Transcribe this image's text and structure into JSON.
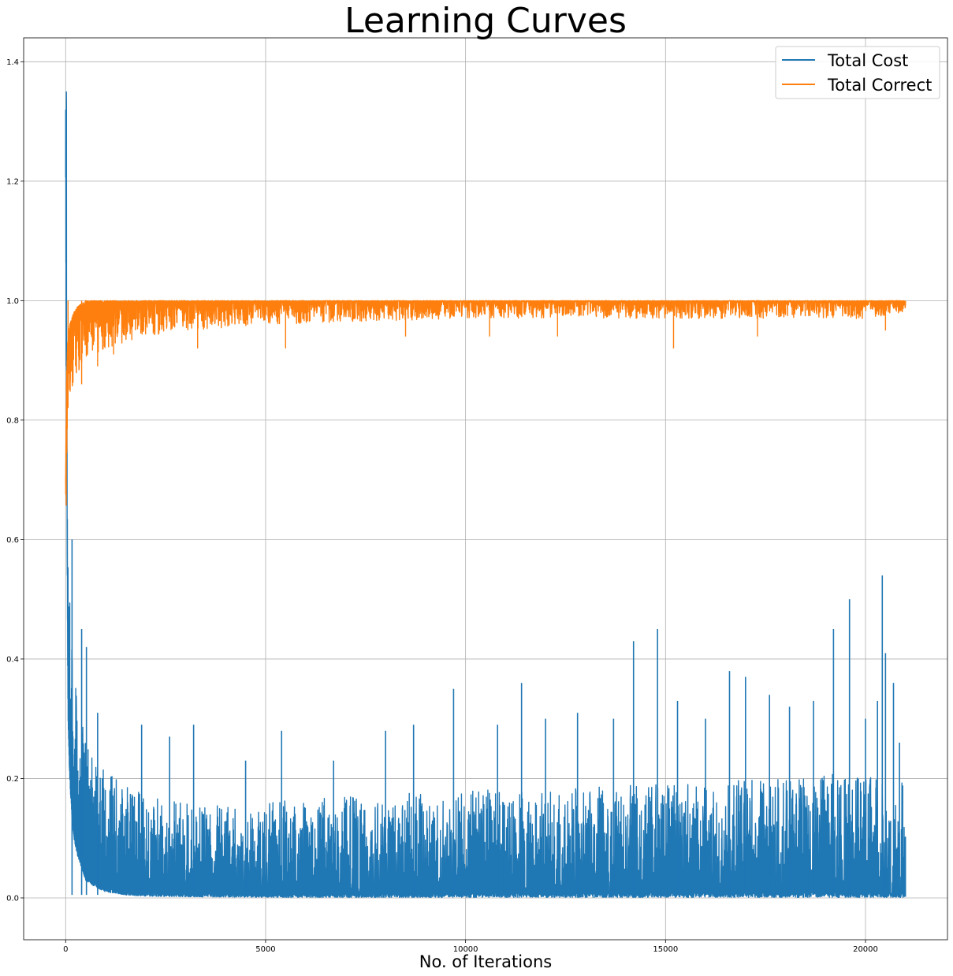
{
  "chart_data": {
    "type": "line",
    "title": "Learning Curves",
    "xlabel": "No. of Iterations",
    "ylabel": "",
    "xlim": [
      -1050,
      22050
    ],
    "ylim": [
      -0.07,
      1.44
    ],
    "xticks": [
      0,
      5000,
      10000,
      15000,
      20000
    ],
    "xtick_labels": [
      "0",
      "5000",
      "10000",
      "15000",
      "20000"
    ],
    "yticks": [
      0.0,
      0.2,
      0.4,
      0.6,
      0.8,
      1.0,
      1.2,
      1.4
    ],
    "ytick_labels": [
      "0.0",
      "0.2",
      "0.4",
      "0.6",
      "0.8",
      "1.0",
      "1.2",
      "1.4"
    ],
    "grid": true,
    "legend_position": "top-right",
    "x_range": [
      0,
      21000
    ],
    "series": [
      {
        "name": "Total Cost",
        "color": "#1f77b4",
        "envelope": {
          "x": [
            0,
            20,
            40,
            60,
            100,
            150,
            200,
            300,
            400,
            500,
            700,
            1000,
            1500,
            2000,
            3000,
            5000,
            7000,
            10000,
            15000,
            20000,
            21000
          ],
          "low": [
            1.2,
            0.8,
            0.5,
            0.3,
            0.2,
            0.14,
            0.1,
            0.07,
            0.05,
            0.03,
            0.02,
            0.01,
            0.005,
            0.003,
            0.002,
            0.001,
            0.001,
            0.001,
            0.001,
            0.001,
            0.001
          ],
          "high": [
            1.35,
            1.37,
            0.73,
            0.56,
            0.5,
            0.45,
            0.38,
            0.33,
            0.3,
            0.27,
            0.24,
            0.21,
            0.19,
            0.17,
            0.16,
            0.16,
            0.17,
            0.18,
            0.19,
            0.21,
            0.21
          ]
        },
        "spikes": [
          {
            "x": 160,
            "y": 0.6
          },
          {
            "x": 400,
            "y": 0.45
          },
          {
            "x": 520,
            "y": 0.42
          },
          {
            "x": 800,
            "y": 0.31
          },
          {
            "x": 1900,
            "y": 0.29
          },
          {
            "x": 2600,
            "y": 0.27
          },
          {
            "x": 3200,
            "y": 0.29
          },
          {
            "x": 4500,
            "y": 0.23
          },
          {
            "x": 5400,
            "y": 0.28
          },
          {
            "x": 6700,
            "y": 0.23
          },
          {
            "x": 8000,
            "y": 0.28
          },
          {
            "x": 8700,
            "y": 0.29
          },
          {
            "x": 9700,
            "y": 0.35
          },
          {
            "x": 10800,
            "y": 0.29
          },
          {
            "x": 11400,
            "y": 0.36
          },
          {
            "x": 12000,
            "y": 0.3
          },
          {
            "x": 12800,
            "y": 0.31
          },
          {
            "x": 13700,
            "y": 0.3
          },
          {
            "x": 14200,
            "y": 0.43
          },
          {
            "x": 14800,
            "y": 0.45
          },
          {
            "x": 15300,
            "y": 0.33
          },
          {
            "x": 16000,
            "y": 0.3
          },
          {
            "x": 16600,
            "y": 0.38
          },
          {
            "x": 17000,
            "y": 0.37
          },
          {
            "x": 17600,
            "y": 0.34
          },
          {
            "x": 18100,
            "y": 0.32
          },
          {
            "x": 18700,
            "y": 0.33
          },
          {
            "x": 19200,
            "y": 0.45
          },
          {
            "x": 19600,
            "y": 0.5
          },
          {
            "x": 20000,
            "y": 0.3
          },
          {
            "x": 20300,
            "y": 0.33
          },
          {
            "x": 20420,
            "y": 0.54
          },
          {
            "x": 20500,
            "y": 0.41
          },
          {
            "x": 20700,
            "y": 0.36
          },
          {
            "x": 20850,
            "y": 0.26
          }
        ]
      },
      {
        "name": "Total Correct",
        "color": "#ff7f0e",
        "envelope": {
          "x": [
            0,
            20,
            50,
            100,
            200,
            300,
            500,
            700,
            1000,
            1500,
            2000,
            3000,
            5000,
            10000,
            15000,
            20000,
            21000
          ],
          "low": [
            0.53,
            0.7,
            0.8,
            0.84,
            0.86,
            0.88,
            0.9,
            0.91,
            0.92,
            0.93,
            0.94,
            0.95,
            0.96,
            0.97,
            0.97,
            0.97,
            0.98
          ],
          "high": [
            0.7,
            0.87,
            0.93,
            0.96,
            0.98,
            0.99,
            1.0,
            1.0,
            1.0,
            1.0,
            1.0,
            1.0,
            1.0,
            1.0,
            1.0,
            1.0,
            1.0
          ]
        },
        "dips": [
          {
            "x": 60,
            "y": 0.82
          },
          {
            "x": 400,
            "y": 0.86
          },
          {
            "x": 800,
            "y": 0.89
          },
          {
            "x": 1200,
            "y": 0.91
          },
          {
            "x": 3300,
            "y": 0.92
          },
          {
            "x": 5500,
            "y": 0.92
          },
          {
            "x": 8500,
            "y": 0.94
          },
          {
            "x": 10600,
            "y": 0.94
          },
          {
            "x": 12300,
            "y": 0.94
          },
          {
            "x": 15200,
            "y": 0.92
          },
          {
            "x": 17300,
            "y": 0.94
          },
          {
            "x": 20500,
            "y": 0.95
          }
        ]
      }
    ]
  }
}
